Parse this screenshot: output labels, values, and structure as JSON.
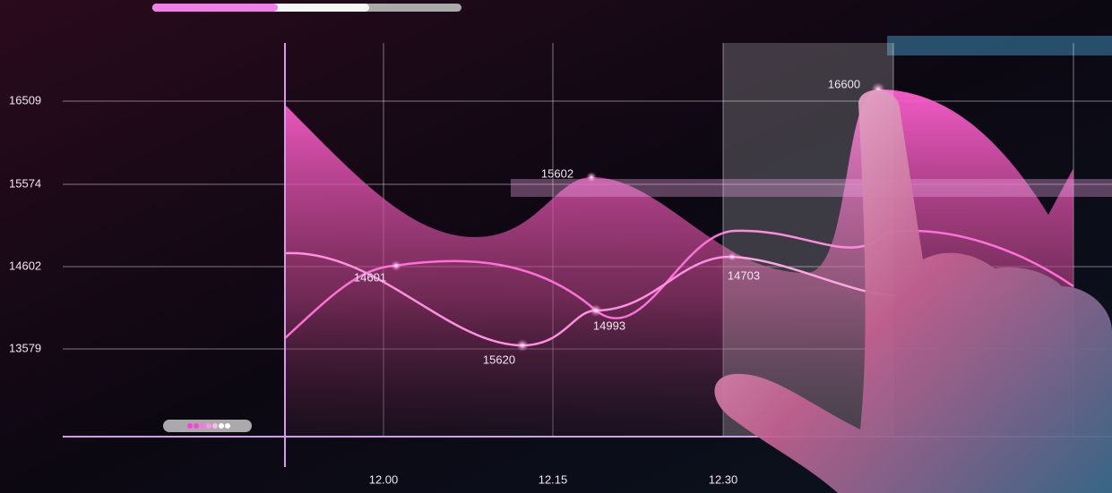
{
  "y_axis_labels": [
    "16509",
    "15574",
    "14602",
    "13579"
  ],
  "x_axis_labels": [
    "12.00",
    "12.15",
    "12.30"
  ],
  "point_labels": [
    "16600",
    "15602",
    "14601",
    "15620",
    "14993",
    "14703"
  ]
}
